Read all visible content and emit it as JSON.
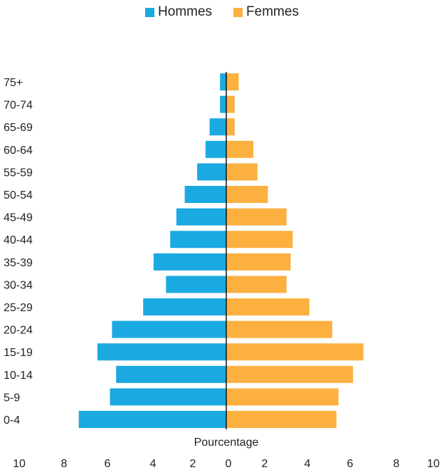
{
  "chart_data": {
    "type": "bar",
    "orientation": "horizontal",
    "subtype": "population-pyramid",
    "categories": [
      "0-4",
      "5-9",
      "10-14",
      "15-19",
      "20-24",
      "25-29",
      "30-34",
      "35-39",
      "40-44",
      "45-49",
      "50-54",
      "55-59",
      "60-64",
      "65-69",
      "70-74",
      "75+"
    ],
    "series": [
      {
        "name": "Hommes",
        "side": "left",
        "color": "#1ba9e1",
        "values": [
          7.1,
          5.6,
          5.3,
          6.2,
          5.5,
          4.0,
          2.9,
          3.5,
          2.7,
          2.4,
          2.0,
          1.4,
          1.0,
          0.8,
          0.3,
          0.3
        ]
      },
      {
        "name": "Femmes",
        "side": "right",
        "color": "#fbb040",
        "values": [
          5.3,
          5.4,
          6.1,
          6.6,
          5.1,
          4.0,
          2.9,
          3.1,
          3.2,
          2.9,
          2.0,
          1.5,
          1.3,
          0.4,
          0.4,
          0.6
        ]
      }
    ],
    "xlabel": "Pourcentage",
    "x_ticks": [
      "10",
      "8",
      "6",
      "4",
      "2",
      "0",
      "2",
      "4",
      "6",
      "8",
      "10"
    ],
    "xlim": [
      -10,
      10
    ],
    "legend": "top-center",
    "grid": false
  }
}
